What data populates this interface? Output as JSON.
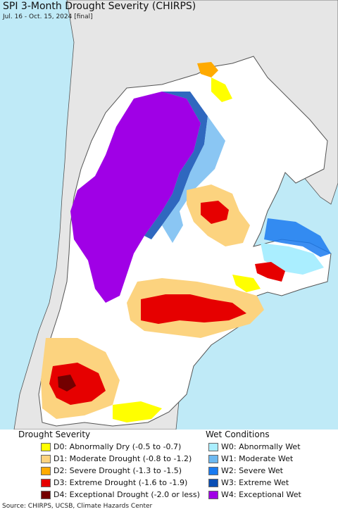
{
  "map": {
    "title": "SPI 3-Month Drought Severity (CHIRPS)",
    "subtitle": "Jul. 16 - Oct. 15, 2024 [final]",
    "colors": {
      "ocean": "#bfeaf7",
      "land": "#ffffff",
      "outside": "#e6e6e6",
      "border": "#555555"
    }
  },
  "legend": {
    "drought": {
      "heading": "Drought Severity",
      "items": [
        {
          "label": "D0: Abnormally Dry (-0.5 to -0.7)",
          "color": "#ffff00"
        },
        {
          "label": "D1: Moderate Drought (-0.8 to -1.2)",
          "color": "#fcd37f"
        },
        {
          "label": "D2: Severe Drought (-1.3 to -1.5)",
          "color": "#ffaa00"
        },
        {
          "label": "D3: Extreme Drought (-1.6 to -1.9)",
          "color": "#e60000"
        },
        {
          "label": "D4: Exceptional Drought (-2.0 or less)",
          "color": "#730000"
        }
      ]
    },
    "wet": {
      "heading": "Wet Conditions",
      "items": [
        {
          "label": "W0: Abnormally Wet",
          "color": "#aaeeff"
        },
        {
          "label": "W1: Moderate Wet",
          "color": "#6db8f0"
        },
        {
          "label": "W2: Severe Wet",
          "color": "#1a7af0"
        },
        {
          "label": "W3: Extreme Wet",
          "color": "#0a4eb4"
        },
        {
          "label": "W4: Exceptional Wet",
          "color": "#a000e6"
        }
      ]
    }
  },
  "source": "Source: CHIRPS, UCSB, Climate Hazards Center"
}
